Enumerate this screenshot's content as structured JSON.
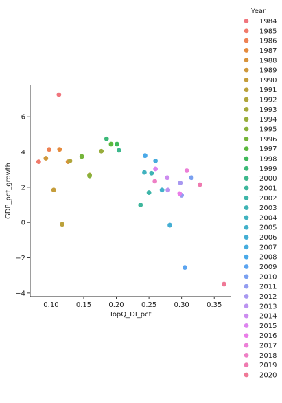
{
  "chart_data": {
    "type": "scatter",
    "xlabel": "TopQ_DI_pct",
    "ylabel": "GDP_pct_growth",
    "xlim": [
      0.068,
      0.375
    ],
    "ylim": [
      -4.2,
      7.8
    ],
    "xticks": [
      0.1,
      0.15,
      0.2,
      0.25,
      0.3,
      0.35
    ],
    "xtick_labels": [
      "0.10",
      "0.15",
      "0.20",
      "0.25",
      "0.30",
      "0.35"
    ],
    "yticks": [
      -4,
      -2,
      0,
      2,
      4,
      6
    ],
    "ytick_labels": [
      "−4",
      "−2",
      "0",
      "2",
      "4",
      "6"
    ],
    "grid": false,
    "legend": {
      "title": "Year",
      "placement": "right"
    },
    "series": [
      {
        "name": "1984",
        "color": "#f0757d",
        "x": 0.112,
        "y": 7.25
      },
      {
        "name": "1985",
        "color": "#f17a6a",
        "x": 0.081,
        "y": 3.45
      },
      {
        "name": "1986",
        "color": "#ee8153",
        "x": 0.097,
        "y": 4.15
      },
      {
        "name": "1987",
        "color": "#e58a3c",
        "x": 0.113,
        "y": 4.15
      },
      {
        "name": "1988",
        "color": "#d8933b",
        "x": 0.126,
        "y": 3.45
      },
      {
        "name": "1989",
        "color": "#cf983b",
        "x": 0.092,
        "y": 3.65
      },
      {
        "name": "1990",
        "color": "#c59d3b",
        "x": 0.104,
        "y": 1.85
      },
      {
        "name": "1991",
        "color": "#bba13b",
        "x": 0.117,
        "y": -0.1
      },
      {
        "name": "1992",
        "color": "#b0a53b",
        "x": 0.129,
        "y": 3.5
      },
      {
        "name": "1993",
        "color": "#a5a93b",
        "x": 0.159,
        "y": 2.7
      },
      {
        "name": "1994",
        "color": "#98ad3b",
        "x": 0.177,
        "y": 4.05
      },
      {
        "name": "1995",
        "color": "#89b13b",
        "x": 0.159,
        "y": 2.65
      },
      {
        "name": "1996",
        "color": "#75b53b",
        "x": 0.147,
        "y": 3.75
      },
      {
        "name": "1997",
        "color": "#5ab83d",
        "x": 0.192,
        "y": 4.45
      },
      {
        "name": "1998",
        "color": "#3fb95a",
        "x": 0.201,
        "y": 4.45
      },
      {
        "name": "1999",
        "color": "#3cb978",
        "x": 0.185,
        "y": 4.75
      },
      {
        "name": "2000",
        "color": "#3db88c",
        "x": 0.204,
        "y": 4.1
      },
      {
        "name": "2001",
        "color": "#3eb69c",
        "x": 0.237,
        "y": 1.0
      },
      {
        "name": "2002",
        "color": "#3eb5a8",
        "x": 0.25,
        "y": 1.7
      },
      {
        "name": "2003",
        "color": "#3fb3b4",
        "x": 0.254,
        "y": 2.8
      },
      {
        "name": "2004",
        "color": "#40b2bf",
        "x": 0.243,
        "y": 2.85
      },
      {
        "name": "2005",
        "color": "#42b0c9",
        "x": 0.27,
        "y": 1.85
      },
      {
        "name": "2006",
        "color": "#44aed3",
        "x": 0.282,
        "y": -0.15
      },
      {
        "name": "2007",
        "color": "#46acdd",
        "x": 0.26,
        "y": 3.5
      },
      {
        "name": "2008",
        "color": "#4aa9e8",
        "x": 0.244,
        "y": 3.8
      },
      {
        "name": "2009",
        "color": "#5ba4f0",
        "x": 0.305,
        "y": -2.55
      },
      {
        "name": "2010",
        "color": "#7aa0f0",
        "x": 0.315,
        "y": 2.55
      },
      {
        "name": "2011",
        "color": "#939cf0",
        "x": 0.3,
        "y": 1.55
      },
      {
        "name": "2012",
        "color": "#a898f0",
        "x": 0.298,
        "y": 2.25
      },
      {
        "name": "2013",
        "color": "#bb93f0",
        "x": 0.279,
        "y": 1.85
      },
      {
        "name": "2014",
        "color": "#cc8cef",
        "x": 0.278,
        "y": 2.55
      },
      {
        "name": "2015",
        "color": "#dd84ef",
        "x": 0.26,
        "y": 3.05
      },
      {
        "name": "2016",
        "color": "#e97de8",
        "x": 0.297,
        "y": 1.65
      },
      {
        "name": "2017",
        "color": "#ec7fd7",
        "x": 0.308,
        "y": 2.95
      },
      {
        "name": "2018",
        "color": "#ee7fc5",
        "x": 0.259,
        "y": 2.35
      },
      {
        "name": "2019",
        "color": "#ef7ab0",
        "x": 0.328,
        "y": 2.15
      },
      {
        "name": "2020",
        "color": "#ef7896",
        "x": 0.365,
        "y": -3.5
      }
    ]
  }
}
